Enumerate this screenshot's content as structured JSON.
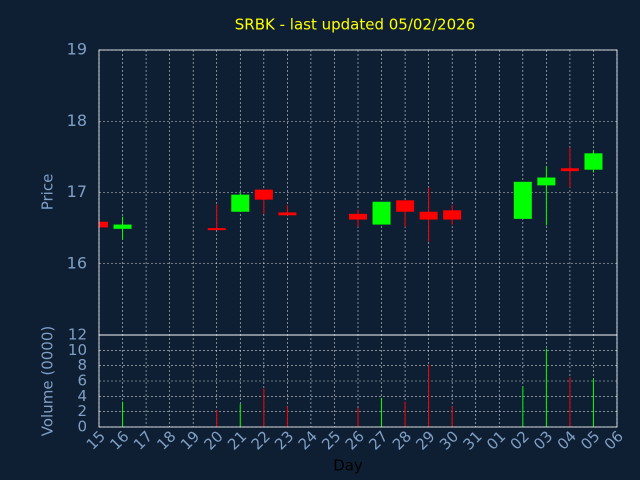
{
  "chart_data": {
    "type": "candlestick",
    "title": "SRBK - last updated 05/02/2026",
    "xlabel": "Day",
    "ylabel": "Price",
    "y2label": "Volume (0000)",
    "categories": [
      "15",
      "16",
      "17",
      "18",
      "19",
      "20",
      "21",
      "22",
      "23",
      "24",
      "25",
      "26",
      "27",
      "28",
      "29",
      "30",
      "31",
      "01",
      "02",
      "03",
      "04",
      "05",
      "06"
    ],
    "open": [
      16.59,
      16.49,
      null,
      null,
      null,
      16.5,
      16.73,
      17.04,
      16.72,
      null,
      null,
      16.7,
      16.55,
      16.89,
      16.73,
      16.75,
      null,
      null,
      16.63,
      17.1,
      17.34,
      17.32,
      null
    ],
    "high": [
      16.59,
      16.66,
      null,
      null,
      null,
      16.83,
      17.0,
      17.04,
      16.82,
      null,
      null,
      16.76,
      16.87,
      16.89,
      17.07,
      16.82,
      null,
      null,
      17.15,
      17.37,
      17.63,
      17.59,
      null
    ],
    "low": [
      16.51,
      16.34,
      null,
      null,
      null,
      16.48,
      16.73,
      16.7,
      16.68,
      null,
      null,
      16.52,
      16.55,
      16.52,
      16.31,
      16.55,
      null,
      null,
      16.63,
      16.54,
      17.07,
      17.28,
      null
    ],
    "close": [
      16.51,
      16.55,
      null,
      null,
      null,
      16.48,
      16.97,
      16.9,
      16.68,
      null,
      null,
      16.62,
      16.87,
      16.73,
      16.62,
      16.62,
      null,
      null,
      17.15,
      17.21,
      17.3,
      17.55,
      null
    ],
    "volume": [
      null,
      3.3,
      null,
      null,
      null,
      2.2,
      3.0,
      5.0,
      2.7,
      null,
      null,
      2.5,
      3.8,
      3.3,
      8.1,
      2.7,
      null,
      null,
      5.3,
      10.2,
      6.5,
      6.3,
      null
    ],
    "up_color": "#00ff00",
    "down_color": "#ff0000",
    "ylim": [
      15,
      19
    ],
    "yticks": [
      16,
      17,
      18,
      19
    ],
    "y2lim": [
      0,
      12
    ],
    "y2ticks": [
      0,
      2,
      4,
      6,
      8,
      10,
      12
    ],
    "grid": true
  }
}
